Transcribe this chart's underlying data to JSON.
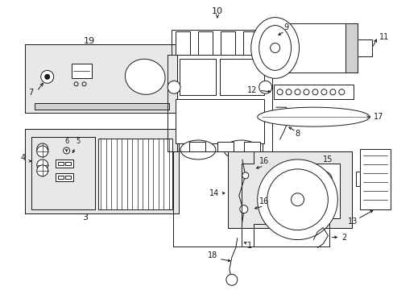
{
  "bg_color": "#ffffff",
  "line_color": "#1a1a1a",
  "gray_fill": "#e8e8e8",
  "light_gray": "#d0d0d0",
  "fig_w": 4.89,
  "fig_h": 3.6,
  "dpi": 100
}
